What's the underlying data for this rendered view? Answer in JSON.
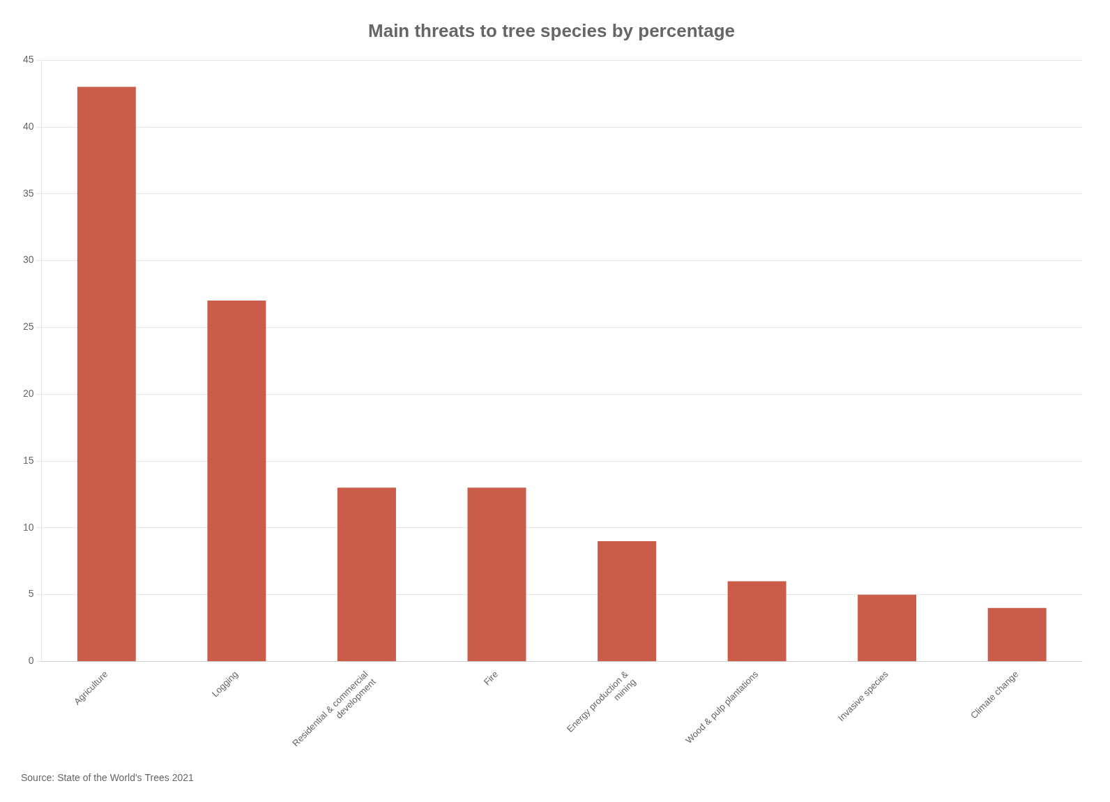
{
  "chart_data": {
    "type": "bar",
    "title": "Main threats to tree species by percentage",
    "categories": [
      "Agriculture",
      "Logging",
      "Residential & commercial\ndevelopment",
      "Fire",
      "Energy production &\nmining",
      "Wood & pulp plantations",
      "Invasive species",
      "Climate change"
    ],
    "values": [
      43,
      27,
      13,
      13,
      9,
      6,
      5,
      4
    ],
    "color": "#CC5C4A",
    "ylim": [
      0,
      45
    ],
    "yticks": [
      0,
      5,
      10,
      15,
      20,
      25,
      30,
      35,
      40,
      45
    ],
    "grid": true,
    "source": "Source: State of the World's Trees 2021"
  }
}
